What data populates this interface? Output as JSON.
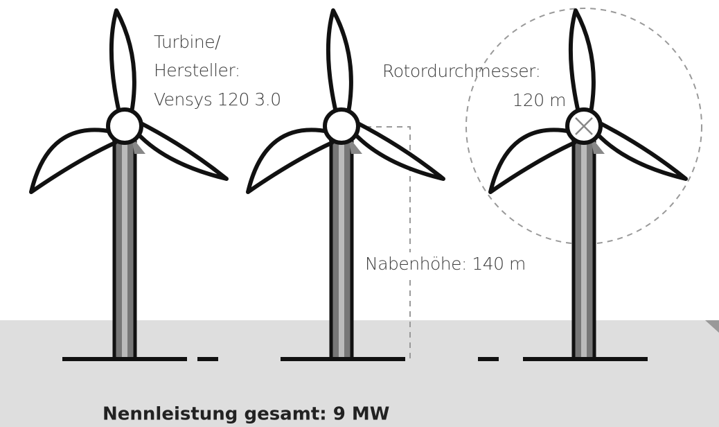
{
  "turbine": {
    "label_lines": [
      "Turbine/",
      "Hersteller:",
      "Vensys 120 3.0"
    ]
  },
  "rotor": {
    "label": "Rotordurchmesser:",
    "value": "120 m"
  },
  "hub_height": {
    "label": "Nabenhöhe: 140 m"
  },
  "footer": {
    "total": "Nennleistung gesamt: 9 MW"
  }
}
